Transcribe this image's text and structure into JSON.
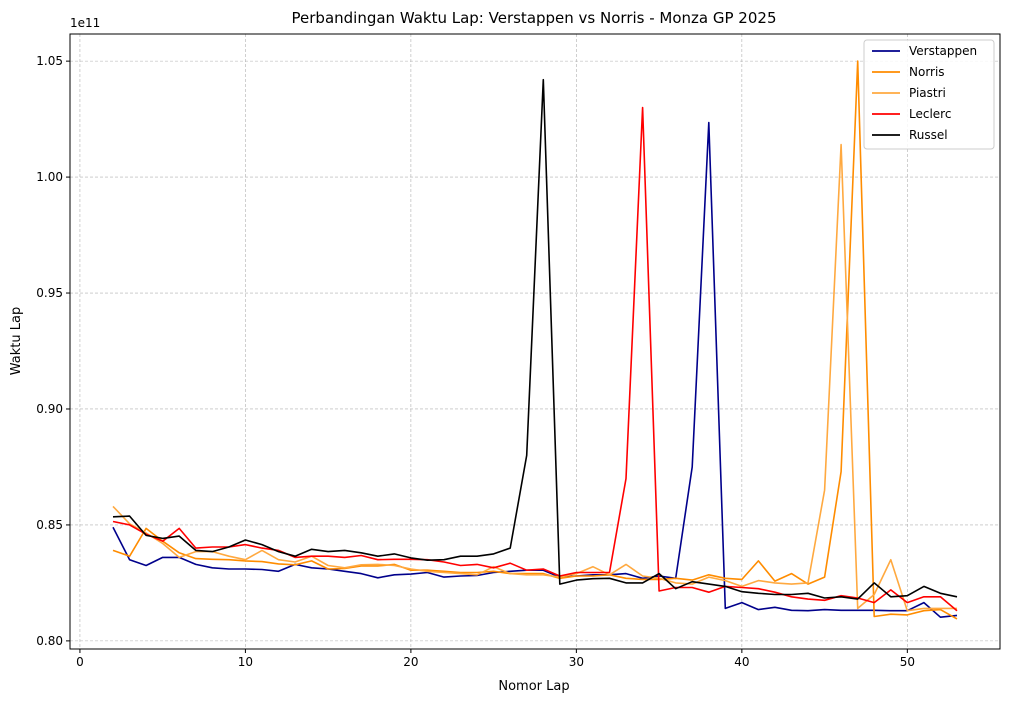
{
  "chart_data": {
    "type": "line",
    "title": "Perbandingan Waktu Lap: Verstappen vs Norris - Monza GP 2025",
    "xlabel": "Nomor Lap",
    "ylabel": "Waktu Lap",
    "offset_label": "1e11",
    "xlim": [
      -0.6,
      55.6
    ],
    "ylim": [
      0.7965,
      1.0617
    ],
    "x_ticks": [
      0,
      10,
      20,
      30,
      40,
      50
    ],
    "x_tick_labels": [
      "0",
      "10",
      "20",
      "30",
      "40",
      "50"
    ],
    "y_ticks": [
      0.8,
      0.85,
      0.9,
      0.95,
      1.0,
      1.05
    ],
    "y_tick_labels": [
      "0.80",
      "0.85",
      "0.90",
      "0.95",
      "1.00",
      "1.05"
    ],
    "grid": true,
    "legend_position": "top-right",
    "x": [
      2,
      3,
      4,
      5,
      6,
      7,
      8,
      9,
      10,
      11,
      12,
      13,
      14,
      15,
      16,
      17,
      18,
      19,
      20,
      21,
      22,
      23,
      24,
      25,
      26,
      27,
      28,
      29,
      30,
      31,
      32,
      33,
      34,
      35,
      36,
      37,
      38,
      39,
      40,
      41,
      42,
      43,
      44,
      45,
      46,
      47,
      48,
      49,
      50,
      51,
      52,
      53
    ],
    "series": [
      {
        "name": "Verstappen",
        "color": "#00008b",
        "values": [
          0.849,
          0.835,
          0.8325,
          0.836,
          0.836,
          0.833,
          0.8315,
          0.831,
          0.831,
          0.8308,
          0.83,
          0.833,
          0.8315,
          0.831,
          0.83,
          0.829,
          0.8272,
          0.8285,
          0.8288,
          0.8295,
          0.8275,
          0.828,
          0.8282,
          0.8295,
          0.83,
          0.8305,
          0.8305,
          0.8275,
          0.828,
          0.8285,
          0.8285,
          0.829,
          0.827,
          0.828,
          0.827,
          0.875,
          1.0235,
          0.814,
          0.8165,
          0.8135,
          0.8145,
          0.8132,
          0.813,
          0.8135,
          0.8132,
          0.8132,
          0.8132,
          0.813,
          0.813,
          0.8165,
          0.8102,
          0.811
        ]
      },
      {
        "name": "Norris",
        "color": "#ff8c00",
        "values": [
          0.839,
          0.8365,
          0.8485,
          0.843,
          0.838,
          0.8355,
          0.8352,
          0.835,
          0.8345,
          0.8342,
          0.8332,
          0.8328,
          0.8345,
          0.831,
          0.8312,
          0.8323,
          0.8323,
          0.833,
          0.8305,
          0.8305,
          0.83,
          0.8295,
          0.8295,
          0.83,
          0.829,
          0.829,
          0.829,
          0.827,
          0.828,
          0.828,
          0.8285,
          0.827,
          0.8265,
          0.8265,
          0.827,
          0.8262,
          0.8285,
          0.827,
          0.8265,
          0.8345,
          0.8258,
          0.829,
          0.8245,
          0.8275,
          0.873,
          1.05,
          0.8105,
          0.8115,
          0.8112,
          0.813,
          0.8135,
          0.8095
        ]
      },
      {
        "name": "Piastri",
        "color": "#ffa940",
        "values": [
          0.858,
          0.8505,
          0.8465,
          0.842,
          0.836,
          0.8385,
          0.8385,
          0.8365,
          0.835,
          0.839,
          0.835,
          0.834,
          0.8365,
          0.8325,
          0.8315,
          0.8328,
          0.833,
          0.8325,
          0.831,
          0.83,
          0.8295,
          0.829,
          0.8285,
          0.832,
          0.829,
          0.8285,
          0.8285,
          0.8275,
          0.829,
          0.832,
          0.8285,
          0.833,
          0.828,
          0.827,
          0.825,
          0.8245,
          0.8275,
          0.826,
          0.8235,
          0.826,
          0.825,
          0.8245,
          0.825,
          0.865,
          1.014,
          0.814,
          0.82,
          0.835,
          0.813,
          0.814,
          0.814,
          0.814
        ]
      },
      {
        "name": "Leclerc",
        "color": "#ff0000",
        "values": [
          0.8515,
          0.85,
          0.846,
          0.843,
          0.8485,
          0.84,
          0.8405,
          0.8405,
          0.8415,
          0.84,
          0.839,
          0.836,
          0.8365,
          0.8365,
          0.836,
          0.8368,
          0.835,
          0.8352,
          0.8352,
          0.835,
          0.834,
          0.8325,
          0.833,
          0.8315,
          0.8335,
          0.8305,
          0.831,
          0.828,
          0.8295,
          0.8295,
          0.8295,
          0.87,
          1.03,
          0.8215,
          0.823,
          0.823,
          0.821,
          0.8235,
          0.823,
          0.8225,
          0.821,
          0.819,
          0.818,
          0.8175,
          0.8195,
          0.8185,
          0.8165,
          0.822,
          0.8165,
          0.819,
          0.819,
          0.813
        ]
      },
      {
        "name": "Russel",
        "color": "#000000",
        "values": [
          0.8535,
          0.8538,
          0.8455,
          0.8442,
          0.8452,
          0.839,
          0.8385,
          0.8405,
          0.8435,
          0.8415,
          0.8385,
          0.8365,
          0.8395,
          0.8385,
          0.839,
          0.838,
          0.8365,
          0.8375,
          0.8358,
          0.8348,
          0.835,
          0.8365,
          0.8365,
          0.8375,
          0.84,
          0.88,
          1.042,
          0.8245,
          0.8262,
          0.8268,
          0.827,
          0.825,
          0.825,
          0.829,
          0.8225,
          0.8255,
          0.8245,
          0.8235,
          0.8212,
          0.8205,
          0.82,
          0.82,
          0.8205,
          0.8185,
          0.819,
          0.818,
          0.825,
          0.819,
          0.8195,
          0.8235,
          0.8205,
          0.819
        ]
      }
    ]
  }
}
